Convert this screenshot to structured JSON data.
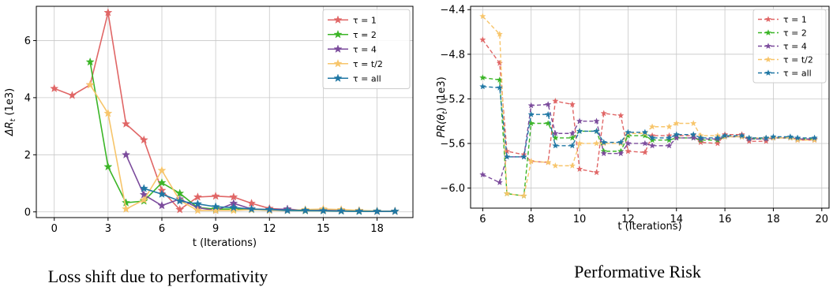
{
  "colors": {
    "tau1": "#e06666",
    "tau2": "#3bb527",
    "tau4": "#7b4b9c",
    "tauhalf": "#f7c56b",
    "tauall": "#1f77a4",
    "grid": "#c8c8c8"
  },
  "chart_data": [
    {
      "type": "line",
      "caption": "Loss shift due to performativity",
      "title": "",
      "xlabel": "t (Iterations)",
      "ylabel": "ΔR_t (1e3)",
      "xlim": [
        -1.0,
        20.0
      ],
      "ylim": [
        -0.2,
        7.2
      ],
      "xticks": [
        0,
        3,
        6,
        9,
        12,
        15,
        18
      ],
      "yticks": [
        0,
        2,
        4,
        6
      ],
      "xtick_labels": [
        "0",
        "3",
        "6",
        "9",
        "12",
        "15",
        "18"
      ],
      "ytick_labels": [
        "0",
        "2",
        "4",
        "6"
      ],
      "grid": true,
      "legend": "top-right",
      "series": [
        {
          "name": "τ = 1",
          "color_key": "tau1",
          "dashed": false,
          "x": [
            0,
            1,
            2,
            3,
            4,
            5,
            6,
            7,
            8,
            9,
            10,
            11,
            12,
            13,
            14,
            15,
            16,
            17,
            18,
            19
          ],
          "y": [
            4.32,
            4.08,
            4.45,
            6.98,
            3.08,
            2.52,
            0.75,
            0.08,
            0.52,
            0.55,
            0.52,
            0.3,
            0.12,
            0.08,
            0.05,
            0.08,
            0.05,
            0.04,
            0.02,
            0.02
          ]
        },
        {
          "name": "τ = 2",
          "color_key": "tau2",
          "dashed": false,
          "x": [
            2,
            3,
            4,
            5,
            6,
            7,
            8,
            9,
            10,
            11,
            12,
            13,
            14,
            15,
            16,
            17,
            18,
            19
          ],
          "y": [
            5.25,
            1.58,
            0.32,
            0.38,
            1.02,
            0.65,
            0.15,
            0.1,
            0.1,
            0.08,
            0.06,
            0.05,
            0.04,
            0.04,
            0.03,
            0.02,
            0.02,
            0.02
          ]
        },
        {
          "name": "τ = 4",
          "color_key": "tau4",
          "dashed": false,
          "x": [
            4,
            5,
            6,
            7,
            8,
            9,
            10,
            11,
            12,
            13,
            14,
            15,
            16,
            17,
            18,
            19
          ],
          "y": [
            2.0,
            0.6,
            0.22,
            0.45,
            0.15,
            0.05,
            0.3,
            0.1,
            0.08,
            0.1,
            0.05,
            0.05,
            0.05,
            0.04,
            0.02,
            0.02
          ]
        },
        {
          "name": "τ = t/2",
          "color_key": "tauhalf",
          "dashed": false,
          "x": [
            2,
            3,
            4,
            5,
            6,
            7,
            8,
            9,
            10,
            11,
            12,
            13,
            14,
            15,
            16,
            17,
            18,
            19
          ],
          "y": [
            4.45,
            3.45,
            0.1,
            0.42,
            1.45,
            0.4,
            0.05,
            0.05,
            0.05,
            0.08,
            0.05,
            0.05,
            0.08,
            0.1,
            0.08,
            0.05,
            0.03,
            0.02
          ]
        },
        {
          "name": "τ = all",
          "color_key": "tauall",
          "dashed": false,
          "x": [
            5,
            6,
            7,
            8,
            9,
            10,
            11,
            12,
            13,
            14,
            15,
            16,
            17,
            18,
            19
          ],
          "y": [
            0.82,
            0.62,
            0.38,
            0.28,
            0.18,
            0.15,
            0.1,
            0.08,
            0.05,
            0.05,
            0.04,
            0.03,
            0.02,
            0.02,
            0.02
          ]
        }
      ]
    },
    {
      "type": "line",
      "caption": "Performative Risk",
      "title": "",
      "xlabel": "t (Iterations)",
      "ylabel": "PR(θ_t) (1e3)",
      "xlim": [
        5.5,
        20.3
      ],
      "ylim": [
        -6.18,
        -4.37
      ],
      "xticks": [
        6,
        8,
        10,
        12,
        14,
        16,
        18,
        20
      ],
      "yticks": [
        -6.0,
        -5.6,
        -5.2,
        -4.8,
        -4.4
      ],
      "xtick_labels": [
        "6",
        "8",
        "10",
        "12",
        "14",
        "16",
        "18",
        "20"
      ],
      "ytick_labels": [
        "−6.0",
        "−5.6",
        "−5.2",
        "−4.8",
        "−4.4"
      ],
      "grid": true,
      "legend": "top-right",
      "series": [
        {
          "name": "τ = 1",
          "color_key": "tau1",
          "dashed": true,
          "x": [
            6,
            6.7,
            7,
            7.7,
            8,
            8.7,
            9,
            9.7,
            10,
            10.7,
            11,
            11.7,
            12,
            12.7,
            13,
            13.7,
            14,
            14.7,
            15,
            15.7,
            16,
            16.7,
            17,
            17.7,
            18,
            18.7,
            19,
            19.7
          ],
          "y": [
            -4.67,
            -4.88,
            -5.67,
            -5.7,
            -5.76,
            -5.77,
            -5.22,
            -5.25,
            -5.83,
            -5.86,
            -5.33,
            -5.35,
            -5.67,
            -5.68,
            -5.53,
            -5.53,
            -5.53,
            -5.53,
            -5.59,
            -5.6,
            -5.52,
            -5.52,
            -5.58,
            -5.58,
            -5.55,
            -5.55,
            -5.57,
            -5.57
          ]
        },
        {
          "name": "τ = 2",
          "color_key": "tau2",
          "dashed": true,
          "x": [
            6,
            6.7,
            7,
            7.7,
            8,
            8.7,
            9,
            9.7,
            10,
            10.7,
            11,
            11.7,
            12,
            12.7,
            13,
            13.7,
            14,
            14.7,
            15,
            15.7,
            16,
            16.7,
            17,
            17.7,
            18,
            18.7,
            19,
            19.7
          ],
          "y": [
            -5.01,
            -5.03,
            -6.05,
            -6.07,
            -5.42,
            -5.42,
            -5.55,
            -5.55,
            -5.49,
            -5.49,
            -5.67,
            -5.67,
            -5.53,
            -5.53,
            -5.57,
            -5.57,
            -5.55,
            -5.55,
            -5.57,
            -5.57,
            -5.54,
            -5.54,
            -5.56,
            -5.56,
            -5.55,
            -5.55,
            -5.56,
            -5.56
          ]
        },
        {
          "name": "τ = 4",
          "color_key": "tau4",
          "dashed": true,
          "x": [
            6,
            6.7,
            7,
            7.7,
            8,
            8.7,
            9,
            9.7,
            10,
            10.7,
            11,
            11.7,
            12,
            12.7,
            13,
            13.7,
            14,
            14.7,
            15,
            15.7,
            16,
            16.7,
            17,
            17.7,
            18,
            18.7,
            19,
            19.7
          ],
          "y": [
            -5.88,
            -5.95,
            -5.72,
            -5.72,
            -5.26,
            -5.25,
            -5.51,
            -5.51,
            -5.4,
            -5.4,
            -5.69,
            -5.69,
            -5.6,
            -5.6,
            -5.62,
            -5.62,
            -5.55,
            -5.55,
            -5.56,
            -5.56,
            -5.54,
            -5.54,
            -5.56,
            -5.56,
            -5.55,
            -5.55,
            -5.56,
            -5.56
          ]
        },
        {
          "name": "τ = t/2",
          "color_key": "tauhalf",
          "dashed": true,
          "x": [
            6,
            6.7,
            7,
            7.7,
            8,
            8.7,
            9,
            9.7,
            10,
            10.7,
            11,
            11.7,
            12,
            12.7,
            13,
            13.7,
            14,
            14.7,
            15,
            15.7,
            16,
            16.7,
            17,
            17.7,
            18,
            18.7,
            19,
            19.7
          ],
          "y": [
            -4.46,
            -4.62,
            -6.05,
            -6.07,
            -5.76,
            -5.77,
            -5.8,
            -5.8,
            -5.6,
            -5.6,
            -5.6,
            -5.6,
            -5.51,
            -5.51,
            -5.45,
            -5.45,
            -5.42,
            -5.42,
            -5.53,
            -5.53,
            -5.54,
            -5.54,
            -5.55,
            -5.55,
            -5.55,
            -5.55,
            -5.57,
            -5.57
          ]
        },
        {
          "name": "τ = all",
          "color_key": "tauall",
          "dashed": true,
          "x": [
            6,
            6.7,
            7,
            7.7,
            8,
            8.7,
            9,
            9.7,
            10,
            10.7,
            11,
            11.7,
            12,
            12.7,
            13,
            13.7,
            14,
            14.7,
            15,
            15.7,
            16,
            16.7,
            17,
            17.7,
            18,
            18.7,
            19,
            19.7
          ],
          "y": [
            -5.09,
            -5.1,
            -5.72,
            -5.72,
            -5.34,
            -5.34,
            -5.62,
            -5.62,
            -5.49,
            -5.49,
            -5.59,
            -5.59,
            -5.5,
            -5.5,
            -5.55,
            -5.55,
            -5.52,
            -5.52,
            -5.55,
            -5.55,
            -5.53,
            -5.53,
            -5.55,
            -5.55,
            -5.54,
            -5.54,
            -5.55,
            -5.55
          ]
        }
      ]
    }
  ]
}
